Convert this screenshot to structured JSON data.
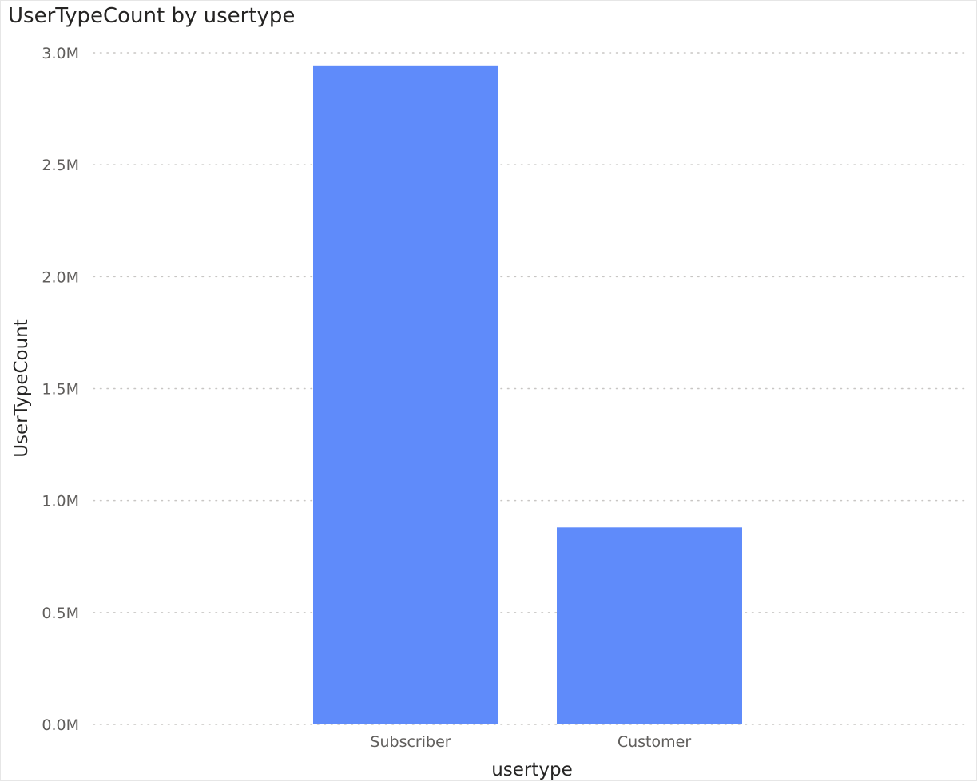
{
  "chart_data": {
    "type": "bar",
    "title": "UserTypeCount by usertype",
    "xlabel": "usertype",
    "ylabel": "UserTypeCount",
    "categories": [
      "Subscriber",
      "Customer"
    ],
    "values": [
      2940000,
      880000
    ],
    "ylim": [
      0,
      3000000
    ],
    "yticks": [
      0,
      500000,
      1000000,
      1500000,
      2000000,
      2500000,
      3000000
    ],
    "ytick_labels": [
      "0.0M",
      "0.5M",
      "1.0M",
      "1.5M",
      "2.0M",
      "2.5M",
      "3.0M"
    ],
    "grid": true,
    "legend": "none",
    "bar_color": "#5f8bfa",
    "gridline_color": "#c8c6c4"
  }
}
